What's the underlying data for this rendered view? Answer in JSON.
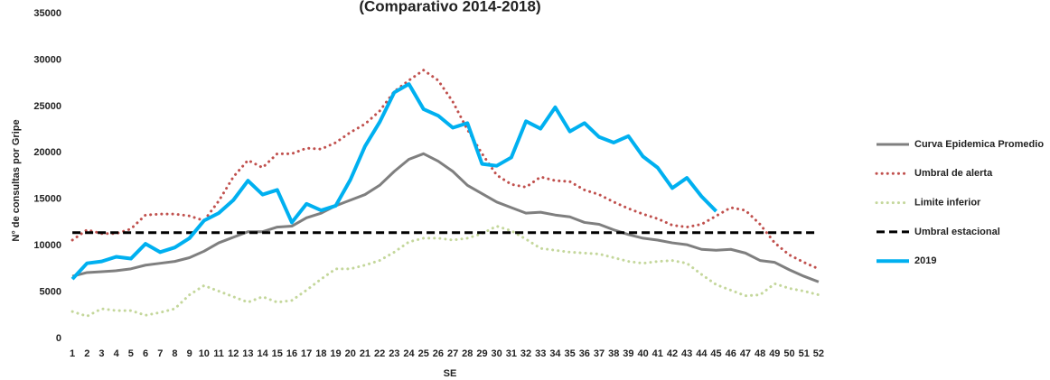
{
  "chart_data": {
    "type": "line",
    "title": "(Comparativo 2014-2018)",
    "x_label": "SE",
    "y_label": "N° de consultas por Gripe",
    "categories": [
      "1",
      "2",
      "3",
      "4",
      "5",
      "6",
      "7",
      "8",
      "9",
      "10",
      "11",
      "12",
      "13",
      "14",
      "15",
      "16",
      "17",
      "18",
      "19",
      "20",
      "21",
      "22",
      "23",
      "24",
      "25",
      "26",
      "27",
      "28",
      "29",
      "30",
      "31",
      "32",
      "33",
      "34",
      "35",
      "36",
      "37",
      "38",
      "39",
      "40",
      "41",
      "42",
      "43",
      "44",
      "45",
      "46",
      "47",
      "48",
      "49",
      "50",
      "51",
      "52"
    ],
    "ylim": [
      0,
      35000
    ],
    "yticks": [
      0,
      5000,
      10000,
      15000,
      20000,
      25000,
      30000,
      35000
    ],
    "legend": "right",
    "series": [
      {
        "name": "Curva Epidemica Promedio",
        "color": "#7f7f7f",
        "style": "solid",
        "width": 3,
        "values": [
          6700,
          7100,
          7200,
          7300,
          7500,
          7900,
          8100,
          8300,
          8700,
          9400,
          10300,
          10900,
          11500,
          11500,
          12000,
          12100,
          13000,
          13500,
          14300,
          14900,
          15500,
          16500,
          18000,
          19300,
          19900,
          19100,
          18000,
          16500,
          15600,
          14700,
          14100,
          13500,
          13600,
          13300,
          13100,
          12500,
          12300,
          11700,
          11200,
          10800,
          10600,
          10300,
          10100,
          9600,
          9500,
          9600,
          9200,
          8400,
          8200,
          7400,
          6700,
          6100
        ]
      },
      {
        "name": "Umbral de alerta",
        "color": "#c0504d",
        "style": "dotted",
        "width": 3,
        "values": [
          10600,
          11700,
          11300,
          11300,
          11800,
          13300,
          13400,
          13400,
          13200,
          12700,
          14800,
          17400,
          19200,
          18400,
          19900,
          19900,
          20500,
          20400,
          21100,
          22200,
          23100,
          24500,
          26600,
          27800,
          28900,
          27800,
          25500,
          22500,
          19900,
          17600,
          16600,
          16300,
          17400,
          17000,
          16900,
          16000,
          15500,
          14700,
          14000,
          13400,
          12900,
          12200,
          12000,
          12300,
          13200,
          14100,
          13800,
          12300,
          10300,
          9000,
          8200,
          7500
        ]
      },
      {
        "name": "Limite inferior",
        "color": "#c4d79b",
        "style": "dotted",
        "width": 3,
        "values": [
          2900,
          2400,
          3200,
          3000,
          3000,
          2500,
          2800,
          3200,
          4700,
          5700,
          5100,
          4500,
          3900,
          4500,
          3900,
          4100,
          5200,
          6400,
          7500,
          7500,
          7900,
          8400,
          9300,
          10400,
          10800,
          10800,
          10600,
          10800,
          11300,
          12100,
          11600,
          10700,
          9700,
          9500,
          9300,
          9200,
          9100,
          8700,
          8300,
          8100,
          8300,
          8400,
          8100,
          6900,
          5800,
          5200,
          4600,
          4700,
          5900,
          5400,
          5100,
          4700
        ]
      },
      {
        "name": "Umbral estacional",
        "color": "#000000",
        "style": "dashed",
        "width": 3,
        "values": [
          11400,
          11400,
          11400,
          11400,
          11400,
          11400,
          11400,
          11400,
          11400,
          11400,
          11400,
          11400,
          11400,
          11400,
          11400,
          11400,
          11400,
          11400,
          11400,
          11400,
          11400,
          11400,
          11400,
          11400,
          11400,
          11400,
          11400,
          11400,
          11400,
          11400,
          11400,
          11400,
          11400,
          11400,
          11400,
          11400,
          11400,
          11400,
          11400,
          11400,
          11400,
          11400,
          11400,
          11400,
          11400,
          11400,
          11400,
          11400,
          11400,
          11400,
          11400,
          11400
        ]
      },
      {
        "name": "2019",
        "color": "#00b0f0",
        "style": "solid",
        "width": 4,
        "values": [
          6400,
          8100,
          8300,
          8800,
          8600,
          10200,
          9300,
          9800,
          10800,
          12700,
          13500,
          14900,
          17000,
          15500,
          16000,
          12500,
          14500,
          13800,
          14300,
          17100,
          20700,
          23300,
          26500,
          27400,
          24700,
          24000,
          22700,
          23200,
          18800,
          18600,
          19500,
          23400,
          22600,
          24900,
          22300,
          23200,
          21700,
          21100,
          21800,
          19600,
          18400,
          16200,
          17300,
          15300,
          13700,
          null,
          null,
          null,
          null,
          null,
          null,
          null
        ]
      }
    ]
  }
}
